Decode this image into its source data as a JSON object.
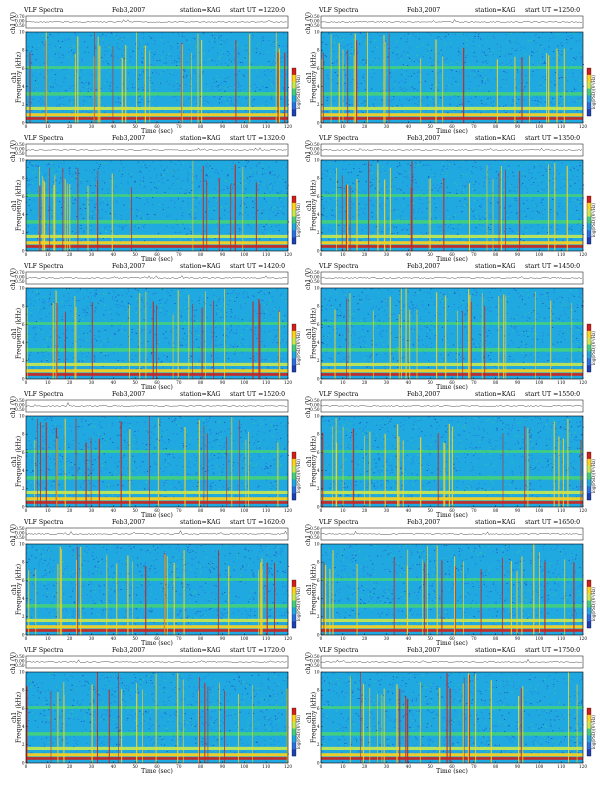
{
  "colors": {
    "noise": "#1fa9e0",
    "low": "#2a6fe0",
    "deep": "#1e3fb0",
    "mid": "#44d07a",
    "hi": "#c8e850",
    "band": "#ffd21a",
    "hot": "#d0201a",
    "line": "#000000"
  },
  "labels": {
    "time_axis": "Time (sec)",
    "channel_axis": "ch1 (V)",
    "freq_axis_ch": "ch1",
    "freq_axis": "Frequency (kHz)",
    "colorbar": "log(PSD)(V²/Hz)"
  },
  "chart_data": [
    {
      "type": "heatmap",
      "title": "VLF Spectra",
      "date": "Feb3,2007",
      "station": "station=KAG",
      "start": "start UT =1220:0",
      "x_ticks": [
        "0",
        "10",
        "20",
        "30",
        "40",
        "50",
        "60",
        "70",
        "80",
        "90",
        "100",
        "110",
        "120"
      ],
      "y_ticks": [
        "0",
        "2",
        "4",
        "6",
        "8",
        "10"
      ],
      "ch_ticks": [
        "0.70",
        "0.00",
        "-0.50"
      ],
      "xlim": [
        0,
        120
      ],
      "ylim": [
        0,
        10
      ]
    },
    {
      "type": "heatmap",
      "title": "VLF Spectra",
      "date": "Feb3,2007",
      "station": "station=KAG",
      "start": "start UT =1250:0",
      "x_ticks": [
        "0",
        "10",
        "20",
        "30",
        "40",
        "50",
        "60",
        "70",
        "80",
        "90",
        "100",
        "110",
        "120"
      ],
      "y_ticks": [
        "0",
        "2",
        "4",
        "6",
        "8",
        "10"
      ],
      "ch_ticks": [
        "0.50",
        "0.00",
        "-0.50"
      ],
      "xlim": [
        0,
        120
      ],
      "ylim": [
        0,
        10
      ]
    },
    {
      "type": "heatmap",
      "title": "VLF Spectra",
      "date": "Feb3,2007",
      "station": "station=KAG",
      "start": "start UT =1320:0",
      "x_ticks": [
        "0",
        "10",
        "20",
        "30",
        "40",
        "50",
        "60",
        "70",
        "80",
        "90",
        "100",
        "110",
        "120"
      ],
      "y_ticks": [
        "0",
        "2",
        "4",
        "6",
        "8",
        "10"
      ],
      "ch_ticks": [
        "0.50",
        "0.00",
        "-0.50"
      ],
      "xlim": [
        0,
        120
      ],
      "ylim": [
        0,
        10
      ]
    },
    {
      "type": "heatmap",
      "title": "VLF Spectra",
      "date": "Feb3,2007",
      "station": "station=KAG",
      "start": "start UT =1350:0",
      "x_ticks": [
        "0",
        "10",
        "20",
        "30",
        "40",
        "50",
        "60",
        "70",
        "80",
        "90",
        "100",
        "110",
        "120"
      ],
      "y_ticks": [
        "0",
        "2",
        "4",
        "6",
        "8",
        "10"
      ],
      "ch_ticks": [
        "0.50",
        "0.00",
        "-0.50"
      ],
      "xlim": [
        0,
        120
      ],
      "ylim": [
        0,
        10
      ]
    },
    {
      "type": "heatmap",
      "title": "VLF Spectra",
      "date": "Feb3,2007",
      "station": "station=KAG",
      "start": "start UT =1420:0",
      "x_ticks": [
        "0",
        "10",
        "20",
        "30",
        "40",
        "50",
        "60",
        "70",
        "80",
        "90",
        "100",
        "110",
        "120"
      ],
      "y_ticks": [
        "0",
        "2",
        "4",
        "6",
        "8",
        "10"
      ],
      "ch_ticks": [
        "0.70",
        "0.00",
        "-0.50"
      ],
      "xlim": [
        0,
        120
      ],
      "ylim": [
        0,
        10
      ]
    },
    {
      "type": "heatmap",
      "title": "VLF Spectra",
      "date": "Feb3,2007",
      "station": "station=KAG",
      "start": "start UT =1450:0",
      "x_ticks": [
        "0",
        "10",
        "20",
        "30",
        "40",
        "50",
        "60",
        "70",
        "80",
        "90",
        "100",
        "110",
        "120"
      ],
      "y_ticks": [
        "0",
        "2",
        "4",
        "6",
        "8",
        "10"
      ],
      "ch_ticks": [
        "0.50",
        "0.00",
        "-0.50"
      ],
      "xlim": [
        0,
        120
      ],
      "ylim": [
        0,
        10
      ]
    },
    {
      "type": "heatmap",
      "title": "VLF Spectra",
      "date": "Feb3,2007",
      "station": "station=KAG",
      "start": "start UT =1520:0",
      "x_ticks": [
        "0",
        "10",
        "20",
        "30",
        "40",
        "50",
        "60",
        "70",
        "80",
        "90",
        "100",
        "110",
        "120"
      ],
      "y_ticks": [
        "0",
        "2",
        "4",
        "6",
        "8",
        "10"
      ],
      "ch_ticks": [
        "0.50",
        "0.00",
        "-0.50"
      ],
      "xlim": [
        0,
        120
      ],
      "ylim": [
        0,
        10
      ]
    },
    {
      "type": "heatmap",
      "title": "VLF Spectra",
      "date": "Feb3,2007",
      "station": "station=KAG",
      "start": "start UT =1550:0",
      "x_ticks": [
        "0",
        "10",
        "20",
        "30",
        "40",
        "50",
        "60",
        "70",
        "80",
        "90",
        "100",
        "110",
        "120"
      ],
      "y_ticks": [
        "0",
        "2",
        "4",
        "6",
        "8",
        "10"
      ],
      "ch_ticks": [
        "0.50",
        "0.00",
        "-0.50"
      ],
      "xlim": [
        0,
        120
      ],
      "ylim": [
        0,
        10
      ]
    },
    {
      "type": "heatmap",
      "title": "VLF Spectra",
      "date": "Feb3,2007",
      "station": "station=KAG",
      "start": "start UT =1620:0",
      "x_ticks": [
        "0",
        "10",
        "20",
        "30",
        "40",
        "50",
        "60",
        "70",
        "80",
        "90",
        "100",
        "110",
        "120"
      ],
      "y_ticks": [
        "0",
        "2",
        "4",
        "6",
        "8",
        "10"
      ],
      "ch_ticks": [
        "0.50",
        "0.00",
        "-0.50"
      ],
      "xlim": [
        0,
        120
      ],
      "ylim": [
        0,
        10
      ]
    },
    {
      "type": "heatmap",
      "title": "VLF Spectra",
      "date": "Feb3,2007",
      "station": "station=KAG",
      "start": "start UT =1650:0",
      "x_ticks": [
        "0",
        "10",
        "20",
        "30",
        "40",
        "50",
        "60",
        "70",
        "80",
        "90",
        "100",
        "110",
        "120"
      ],
      "y_ticks": [
        "0",
        "2",
        "4",
        "6",
        "8",
        "10"
      ],
      "ch_ticks": [
        "0.50",
        "0.00",
        "-0.50"
      ],
      "xlim": [
        0,
        120
      ],
      "ylim": [
        0,
        10
      ]
    },
    {
      "type": "heatmap",
      "title": "VLF Spectra",
      "date": "Feb3,2007",
      "station": "station=KAG",
      "start": "start UT =1720:0",
      "x_ticks": [
        "0",
        "10",
        "20",
        "30",
        "40",
        "50",
        "60",
        "70",
        "80",
        "90",
        "100",
        "110",
        "120"
      ],
      "y_ticks": [
        "0",
        "2",
        "4",
        "6",
        "8",
        "10"
      ],
      "ch_ticks": [
        "0.50",
        "0.00",
        "-0.50"
      ],
      "xlim": [
        0,
        120
      ],
      "ylim": [
        0,
        10
      ]
    },
    {
      "type": "heatmap",
      "title": "VLF Spectra",
      "date": "Feb3,2007",
      "station": "station=KAG",
      "start": "start UT =1750:0",
      "x_ticks": [
        "0",
        "10",
        "20",
        "30",
        "40",
        "50",
        "60",
        "70",
        "80",
        "90",
        "100",
        "110",
        "120"
      ],
      "y_ticks": [
        "0",
        "2",
        "4",
        "6",
        "8",
        "10"
      ],
      "ch_ticks": [
        "0.50",
        "0.00",
        "-0.50"
      ],
      "xlim": [
        0,
        120
      ],
      "ylim": [
        0,
        10
      ]
    }
  ]
}
